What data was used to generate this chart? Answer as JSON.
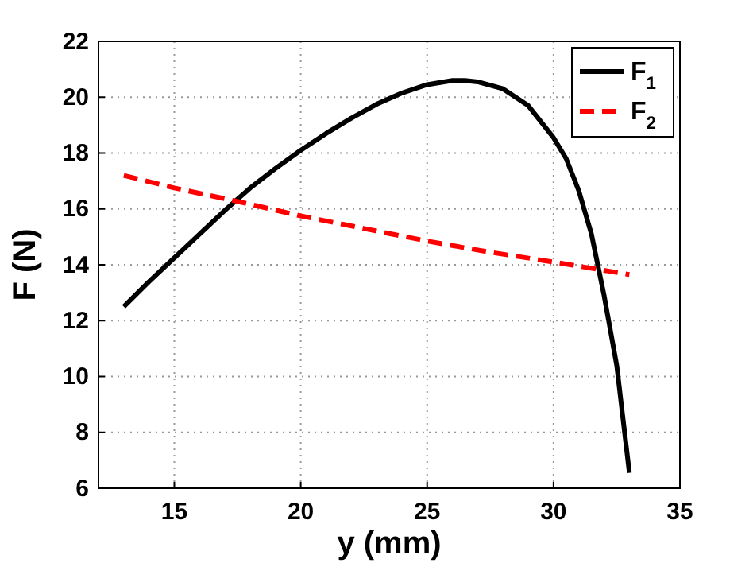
{
  "chart_data": {
    "type": "line",
    "xlabel": "y (mm)",
    "ylabel": "F (N)",
    "xlim": [
      12,
      35
    ],
    "xticks": [
      15,
      20,
      25,
      30,
      35
    ],
    "ylim": [
      6,
      22
    ],
    "yticks": [
      6,
      8,
      10,
      12,
      14,
      16,
      18,
      20,
      22
    ],
    "grid": true,
    "legend": "top right",
    "series": [
      {
        "name": "F$_{1}$",
        "color": "#000000",
        "line_style": "solid",
        "x": [
          13,
          14,
          15,
          16,
          17,
          18,
          19,
          20,
          21,
          22,
          23,
          24,
          25,
          26,
          26.5,
          27,
          28,
          29,
          30,
          30.5,
          31,
          31.5,
          32,
          32.5,
          33
        ],
        "values": [
          12.5,
          13.4,
          14.25,
          15.1,
          15.95,
          16.75,
          17.45,
          18.1,
          18.7,
          19.25,
          19.75,
          20.15,
          20.45,
          20.6,
          20.6,
          20.55,
          20.3,
          19.7,
          18.55,
          17.8,
          16.65,
          15.1,
          12.9,
          10.4,
          6.55
        ]
      },
      {
        "name": "F$_{2}$",
        "color": "#ff0000",
        "line_style": "dashed",
        "x": [
          13,
          15,
          17.6,
          20,
          22.5,
          25,
          27.5,
          30,
          33
        ],
        "values": [
          17.2,
          16.75,
          16.25,
          15.75,
          15.3,
          14.85,
          14.45,
          14.1,
          13.65
        ]
      }
    ]
  }
}
